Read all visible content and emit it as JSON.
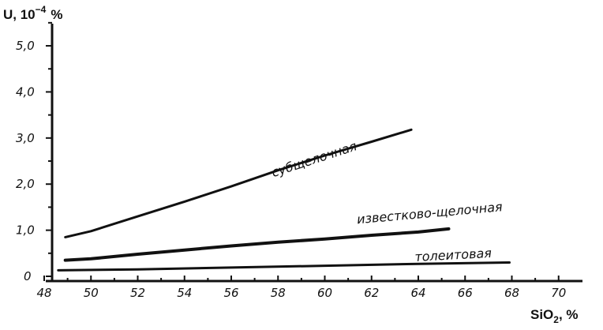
{
  "chart_data": {
    "type": "line",
    "ylabel": "U, 10",
    "ylabel_exp": "−4",
    "ylabel_unit": "%",
    "xlabel": "SiO",
    "xlabel_sub": "2",
    "xlabel_unit": ", %",
    "xlim": [
      48,
      72
    ],
    "ylim": [
      0,
      5.6
    ],
    "x_ticks": [
      48,
      49,
      50,
      51,
      52,
      53,
      54,
      55,
      56,
      57,
      58,
      59,
      60,
      61,
      62,
      63,
      64,
      65,
      66,
      67,
      68,
      69,
      70
    ],
    "x_tick_labels": [
      {
        "x": 48,
        "label": "48"
      },
      {
        "x": 50,
        "label": "50"
      },
      {
        "x": 52,
        "label": "52"
      },
      {
        "x": 54,
        "label": "54"
      },
      {
        "x": 56,
        "label": "56"
      },
      {
        "x": 58,
        "label": "58"
      },
      {
        "x": 60,
        "label": "60"
      },
      {
        "x": 62,
        "label": "62"
      },
      {
        "x": 64,
        "label": "64"
      },
      {
        "x": 66,
        "label": "66"
      },
      {
        "x": 68,
        "label": "68"
      },
      {
        "x": 70,
        "label": "70"
      }
    ],
    "y_ticks": [
      0,
      0.5,
      1.0,
      1.5,
      2.0,
      2.5,
      3.0,
      3.5,
      4.0,
      4.5,
      5.0,
      5.5
    ],
    "y_tick_labels": [
      {
        "y": 0,
        "label": "0"
      },
      {
        "y": 1.0,
        "label": "1,0"
      },
      {
        "y": 2.0,
        "label": "2,0"
      },
      {
        "y": 3.0,
        "label": "3,0"
      },
      {
        "y": 4.0,
        "label": "4,0"
      },
      {
        "y": 5.0,
        "label": "5,0"
      }
    ],
    "grid": false,
    "series": [
      {
        "name": "субщелочная",
        "points": [
          [
            48.9,
            0.85
          ],
          [
            50,
            0.98
          ],
          [
            52,
            1.3
          ],
          [
            54,
            1.62
          ],
          [
            56,
            1.95
          ],
          [
            58,
            2.3
          ],
          [
            60,
            2.62
          ],
          [
            62,
            2.92
          ],
          [
            63.7,
            3.18
          ]
        ],
        "label_at": [
          59.6,
          2.45
        ],
        "label_angle": -18
      },
      {
        "name": "известково-щелочная",
        "points": [
          [
            48.9,
            0.35
          ],
          [
            50,
            0.38
          ],
          [
            52,
            0.48
          ],
          [
            54,
            0.57
          ],
          [
            56,
            0.66
          ],
          [
            58,
            0.74
          ],
          [
            60,
            0.81
          ],
          [
            62,
            0.89
          ],
          [
            64,
            0.96
          ],
          [
            65.3,
            1.03
          ]
        ],
        "label_at": [
          64.5,
          1.28
        ],
        "label_angle": -5
      },
      {
        "name": "толеитовая",
        "points": [
          [
            48.6,
            0.13
          ],
          [
            52,
            0.15
          ],
          [
            56,
            0.19
          ],
          [
            60,
            0.23
          ],
          [
            64,
            0.27
          ],
          [
            67.9,
            0.3
          ]
        ],
        "label_at": [
          65.5,
          0.37
        ],
        "label_angle": -3
      }
    ]
  }
}
